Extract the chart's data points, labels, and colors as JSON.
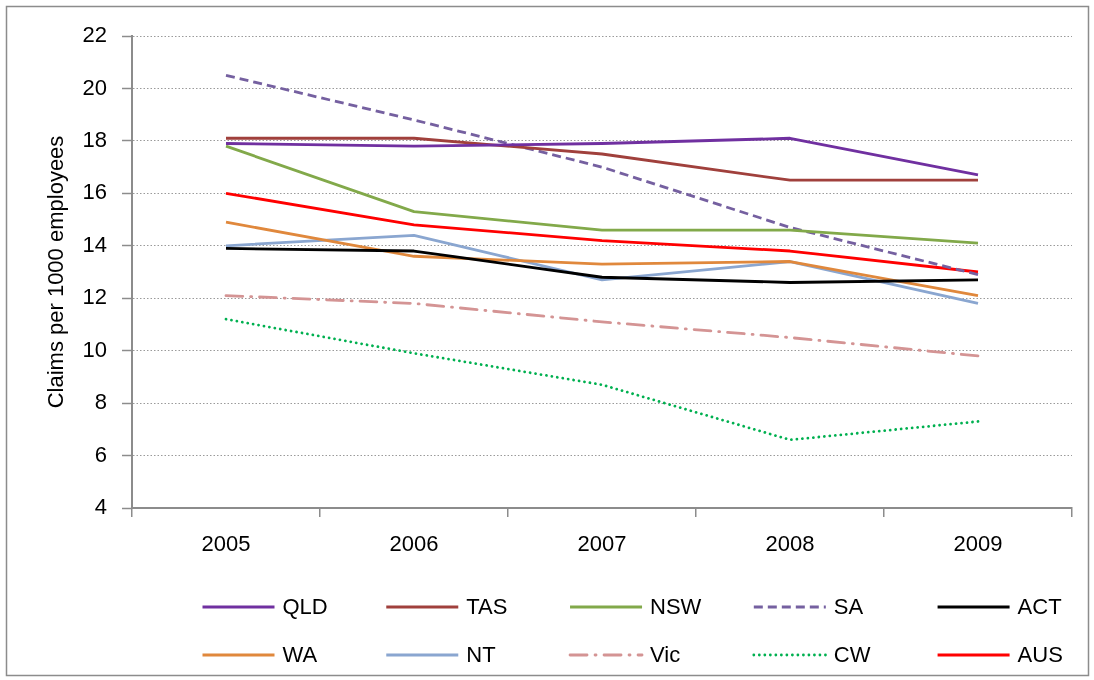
{
  "chart_data": {
    "type": "line",
    "ylabel": "Claims per 1000 employees",
    "categories": [
      "2005",
      "2006",
      "2007",
      "2008",
      "2009"
    ],
    "ylim": [
      4,
      22
    ],
    "yticks": [
      4,
      6,
      8,
      10,
      12,
      14,
      16,
      18,
      20,
      22
    ],
    "grid": "y",
    "legend": "bottom",
    "marker": "none",
    "series": [
      {
        "name": "QLD",
        "color": "#7030a0",
        "line_style": "solid",
        "values": [
          17.9,
          17.8,
          17.9,
          18.1,
          16.7
        ]
      },
      {
        "name": "TAS",
        "color": "#a0403c",
        "line_style": "solid",
        "values": [
          18.1,
          18.1,
          17.5,
          16.5,
          16.5
        ]
      },
      {
        "name": "NSW",
        "color": "#82a94a",
        "line_style": "solid",
        "values": [
          17.8,
          15.3,
          14.6,
          14.6,
          14.1
        ]
      },
      {
        "name": "SA",
        "color": "#7560a0",
        "line_style": "dashed",
        "values": [
          20.5,
          18.8,
          17.0,
          14.7,
          12.9
        ]
      },
      {
        "name": "ACT",
        "color": "#000000",
        "line_style": "solid",
        "values": [
          13.9,
          13.8,
          12.8,
          12.6,
          12.7
        ]
      },
      {
        "name": "WA",
        "color": "#e0883c",
        "line_style": "solid",
        "values": [
          14.9,
          13.6,
          13.3,
          13.4,
          12.1
        ]
      },
      {
        "name": "NT",
        "color": "#8aa6d0",
        "line_style": "solid",
        "values": [
          14.0,
          14.4,
          12.7,
          13.4,
          11.8
        ]
      },
      {
        "name": "Vic",
        "color": "#d49494",
        "line_style": "dashdot",
        "values": [
          12.1,
          11.8,
          11.1,
          10.5,
          9.8
        ]
      },
      {
        "name": "CW",
        "color": "#00b050",
        "line_style": "dotted",
        "values": [
          11.2,
          9.9,
          8.7,
          6.6,
          7.3
        ]
      },
      {
        "name": "AUS",
        "color": "#ff0000",
        "line_style": "solid",
        "values": [
          16.0,
          14.8,
          14.2,
          13.8,
          13.0
        ]
      }
    ]
  }
}
